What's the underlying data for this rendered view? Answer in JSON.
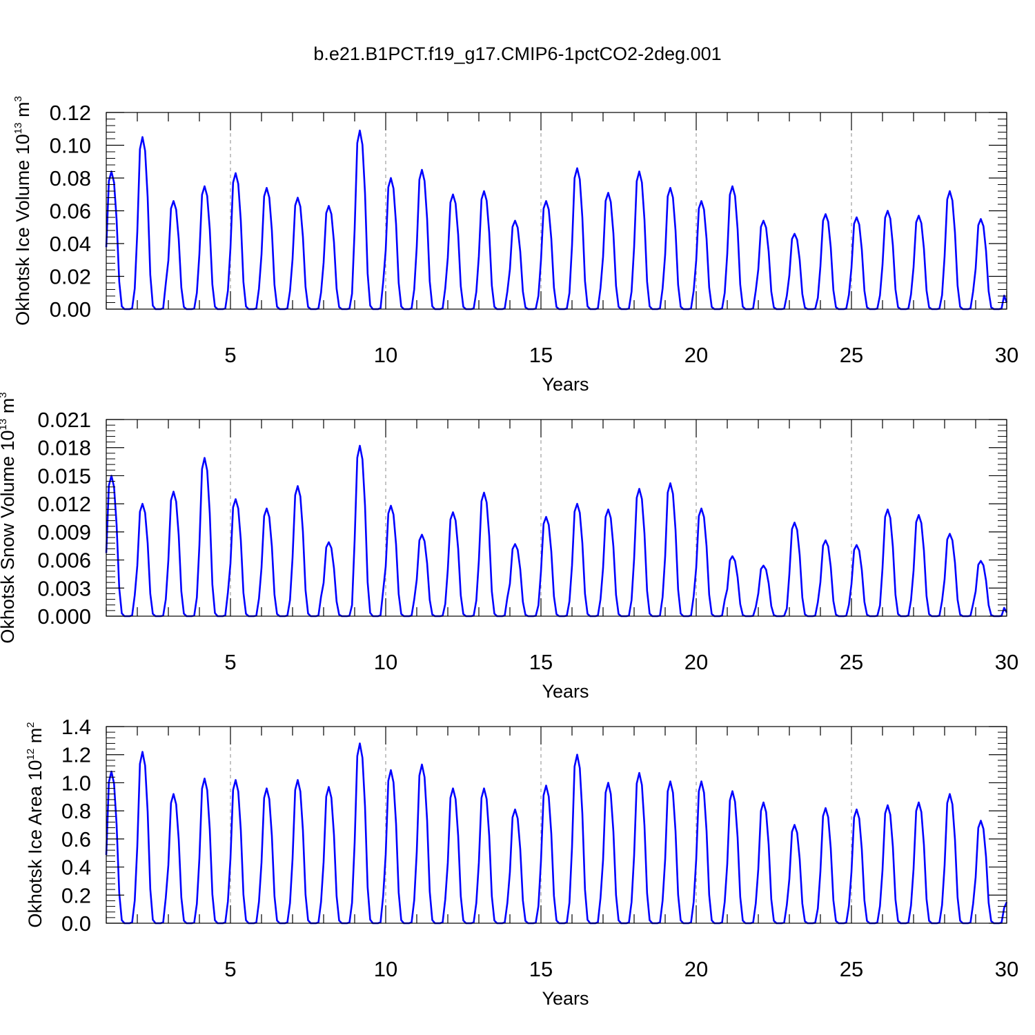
{
  "title": "b.e21.B1PCT.f19_g17.CMIP6-1pctCO2-2deg.001",
  "chart_data": [
    {
      "type": "line",
      "ylabel": "Okhotsk Ice Volume",
      "yunit_base": "10",
      "yunit_exp": "13",
      "yunit_m": "m",
      "yunit_mexp": "3",
      "xlabel": "Years",
      "xlim": [
        1,
        30
      ],
      "ylim": [
        0,
        0.12
      ],
      "xticks": [
        5,
        10,
        15,
        20,
        25,
        30
      ],
      "yticks": [
        "0.00",
        "0.02",
        "0.04",
        "0.06",
        "0.08",
        "0.10",
        "0.12"
      ],
      "ytick_values": [
        0,
        0.02,
        0.04,
        0.06,
        0.08,
        0.1,
        0.12
      ],
      "grid_x": true,
      "color": "#0000ff",
      "peaks": [
        0.084,
        0.105,
        0.066,
        0.075,
        0.083,
        0.074,
        0.068,
        0.063,
        0.109,
        0.08,
        0.085,
        0.07,
        0.072,
        0.054,
        0.066,
        0.086,
        0.071,
        0.084,
        0.074,
        0.066,
        0.075,
        0.054,
        0.046,
        0.058,
        0.056,
        0.06,
        0.057,
        0.072,
        0.055
      ],
      "end_value": 0.004
    },
    {
      "type": "line",
      "ylabel": "Okhotsk Snow Volume",
      "yunit_base": "10",
      "yunit_exp": "13",
      "yunit_m": "m",
      "yunit_mexp": "3",
      "xlabel": "Years",
      "xlim": [
        1,
        30
      ],
      "ylim": [
        0,
        0.021
      ],
      "xticks": [
        5,
        10,
        15,
        20,
        25,
        30
      ],
      "yticks": [
        "0.000",
        "0.003",
        "0.006",
        "0.009",
        "0.012",
        "0.015",
        "0.018",
        "0.021"
      ],
      "ytick_values": [
        0,
        0.003,
        0.006,
        0.009,
        0.012,
        0.015,
        0.018,
        0.021
      ],
      "grid_x": true,
      "color": "#0000ff",
      "peaks": [
        0.015,
        0.012,
        0.0133,
        0.0169,
        0.0125,
        0.0115,
        0.0139,
        0.0079,
        0.0182,
        0.0118,
        0.0087,
        0.0111,
        0.0132,
        0.0077,
        0.0106,
        0.012,
        0.0114,
        0.0136,
        0.0142,
        0.0115,
        0.0064,
        0.0054,
        0.01,
        0.0081,
        0.0076,
        0.0114,
        0.0108,
        0.0088,
        0.0059
      ],
      "end_value": 0.0004
    },
    {
      "type": "line",
      "ylabel": "Okhotsk Ice Area",
      "yunit_base": "10",
      "yunit_exp": "12",
      "yunit_m": "m",
      "yunit_mexp": "2",
      "xlabel": "Years",
      "xlim": [
        1,
        30
      ],
      "ylim": [
        0,
        1.4
      ],
      "xticks": [
        5,
        10,
        15,
        20,
        25,
        30
      ],
      "yticks": [
        "0.0",
        "0.2",
        "0.4",
        "0.6",
        "0.8",
        "1.0",
        "1.2",
        "1.4"
      ],
      "ytick_values": [
        0,
        0.2,
        0.4,
        0.6,
        0.8,
        1.0,
        1.2,
        1.4
      ],
      "grid_x": true,
      "color": "#0000ff",
      "peaks": [
        1.08,
        1.22,
        0.92,
        1.03,
        1.02,
        0.96,
        1.02,
        0.97,
        1.28,
        1.09,
        1.13,
        0.96,
        0.96,
        0.81,
        0.98,
        1.2,
        1.0,
        1.07,
        1.01,
        1.01,
        0.94,
        0.86,
        0.7,
        0.82,
        0.81,
        0.84,
        0.86,
        0.92,
        0.73
      ],
      "end_value": 0.15
    }
  ]
}
